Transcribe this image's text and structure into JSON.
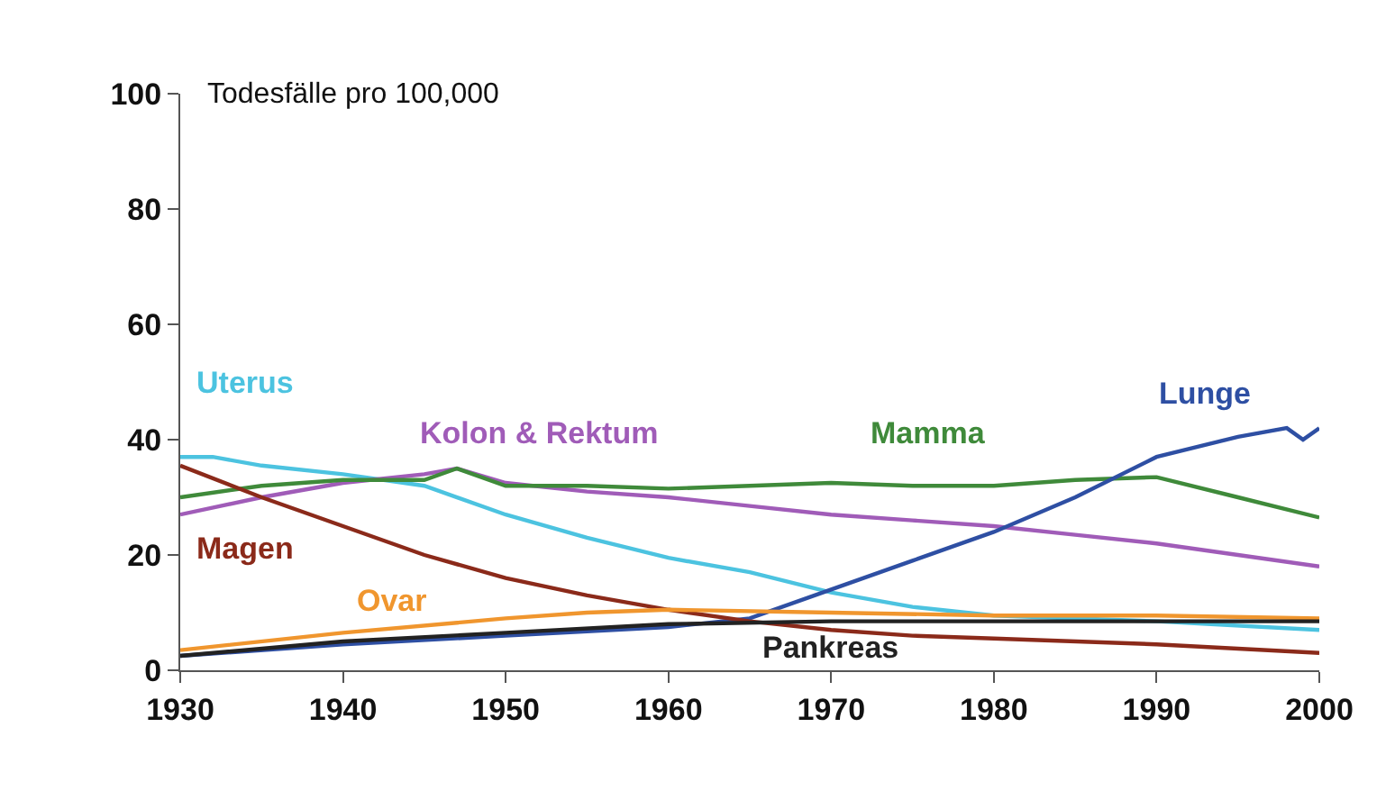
{
  "chart_data": {
    "type": "line",
    "ylabel": "Todesfälle pro 100,000",
    "xlim": [
      1930,
      2000
    ],
    "xticks": [
      1930,
      1940,
      1950,
      1960,
      1970,
      1980,
      1990,
      2000
    ],
    "ylim": [
      0,
      100
    ],
    "yticks": [
      0,
      20,
      40,
      60,
      80,
      100
    ],
    "grid": false,
    "legend": false,
    "marker": "none",
    "line_style": "solid",
    "series": [
      {
        "name": "Uterus",
        "color": "#4cc3e0",
        "x": [
          1930,
          1932,
          1935,
          1940,
          1945,
          1950,
          1955,
          1960,
          1965,
          1970,
          1975,
          1980,
          1990,
          2000
        ],
        "values": [
          37,
          37,
          35.5,
          34,
          32,
          27,
          23,
          19.5,
          17,
          13.5,
          11,
          9.5,
          8.5,
          7
        ]
      },
      {
        "name": "Kolon & Rektum",
        "color": "#a05cb8",
        "x": [
          1930,
          1935,
          1940,
          1945,
          1947,
          1950,
          1955,
          1960,
          1965,
          1970,
          1975,
          1980,
          1985,
          1990,
          1995,
          2000
        ],
        "values": [
          27,
          30,
          32.5,
          34,
          35,
          32.5,
          31,
          30,
          28.5,
          27,
          26,
          25,
          23.5,
          22,
          20,
          18
        ]
      },
      {
        "name": "Mamma",
        "color": "#3f8a3a",
        "x": [
          1930,
          1935,
          1940,
          1945,
          1947,
          1950,
          1955,
          1960,
          1965,
          1970,
          1975,
          1980,
          1985,
          1990,
          1995,
          2000
        ],
        "values": [
          30,
          32,
          33,
          33,
          35,
          32,
          32,
          31.5,
          32,
          32.5,
          32,
          32,
          33,
          33.5,
          30,
          26.5
        ]
      },
      {
        "name": "Lunge",
        "color": "#2e4fa3",
        "x": [
          1930,
          1940,
          1950,
          1960,
          1965,
          1970,
          1975,
          1980,
          1985,
          1990,
          1995,
          1998,
          1999,
          2000
        ],
        "values": [
          2.5,
          4.5,
          6,
          7.5,
          9,
          14,
          19,
          24,
          30,
          37,
          40.5,
          42,
          40,
          42
        ]
      },
      {
        "name": "Magen",
        "color": "#8b2a1a",
        "x": [
          1930,
          1935,
          1940,
          1945,
          1950,
          1955,
          1960,
          1965,
          1970,
          1975,
          1980,
          1990,
          2000
        ],
        "values": [
          35.5,
          30,
          25,
          20,
          16,
          13,
          10.5,
          8.5,
          7,
          6,
          5.5,
          4.5,
          3
        ]
      },
      {
        "name": "Ovar",
        "color": "#f0962e",
        "x": [
          1930,
          1940,
          1950,
          1955,
          1960,
          1970,
          1980,
          1990,
          2000
        ],
        "values": [
          3.5,
          6.5,
          9,
          10,
          10.5,
          10,
          9.5,
          9.5,
          9
        ]
      },
      {
        "name": "Pankreas",
        "color": "#222222",
        "x": [
          1930,
          1940,
          1950,
          1960,
          1970,
          1980,
          1990,
          2000
        ],
        "values": [
          2.5,
          5,
          6.5,
          8,
          8.5,
          8.5,
          8.5,
          8.5
        ]
      }
    ]
  }
}
